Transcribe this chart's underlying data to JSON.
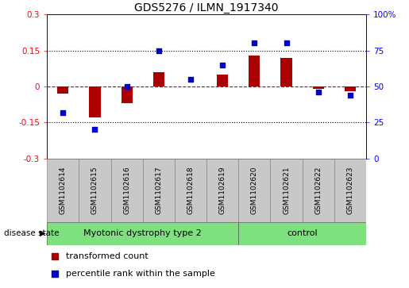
{
  "title": "GDS5276 / ILMN_1917340",
  "samples": [
    "GSM1102614",
    "GSM1102615",
    "GSM1102616",
    "GSM1102617",
    "GSM1102618",
    "GSM1102619",
    "GSM1102620",
    "GSM1102621",
    "GSM1102622",
    "GSM1102623"
  ],
  "transformed_count": [
    -0.03,
    -0.13,
    -0.07,
    0.06,
    0.0,
    0.05,
    0.13,
    0.12,
    -0.01,
    -0.02
  ],
  "percentile_rank": [
    32,
    20,
    50,
    75,
    55,
    65,
    80,
    80,
    46,
    44
  ],
  "disease_groups": [
    {
      "label": "Myotonic dystrophy type 2",
      "start": 0,
      "end": 6,
      "color": "#7EE07E"
    },
    {
      "label": "control",
      "start": 6,
      "end": 10,
      "color": "#7EE07E"
    }
  ],
  "ylim_left": [
    -0.3,
    0.3
  ],
  "ylim_right": [
    0,
    100
  ],
  "yticks_left": [
    -0.3,
    -0.15,
    0.0,
    0.15,
    0.3
  ],
  "yticks_right": [
    0,
    25,
    50,
    75,
    100
  ],
  "ytick_labels_left": [
    "-0.3",
    "-0.15",
    "0",
    "0.15",
    "0.3"
  ],
  "ytick_labels_right": [
    "0",
    "25",
    "50",
    "75",
    "100%"
  ],
  "bar_color": "#AA0000",
  "dot_color": "#0000CC",
  "dotted_line_color": "black",
  "dashed_zero_color": "#CC0000",
  "disease_state_label": "disease state",
  "legend_bar_label": "transformed count",
  "legend_dot_label": "percentile rank within the sample",
  "bar_width": 0.35,
  "dot_size": 25,
  "sample_box_color": "#C8C8C8",
  "title_fontsize": 10,
  "axis_fontsize": 7.5,
  "label_fontsize": 6.5,
  "disease_fontsize": 8,
  "legend_fontsize": 8
}
